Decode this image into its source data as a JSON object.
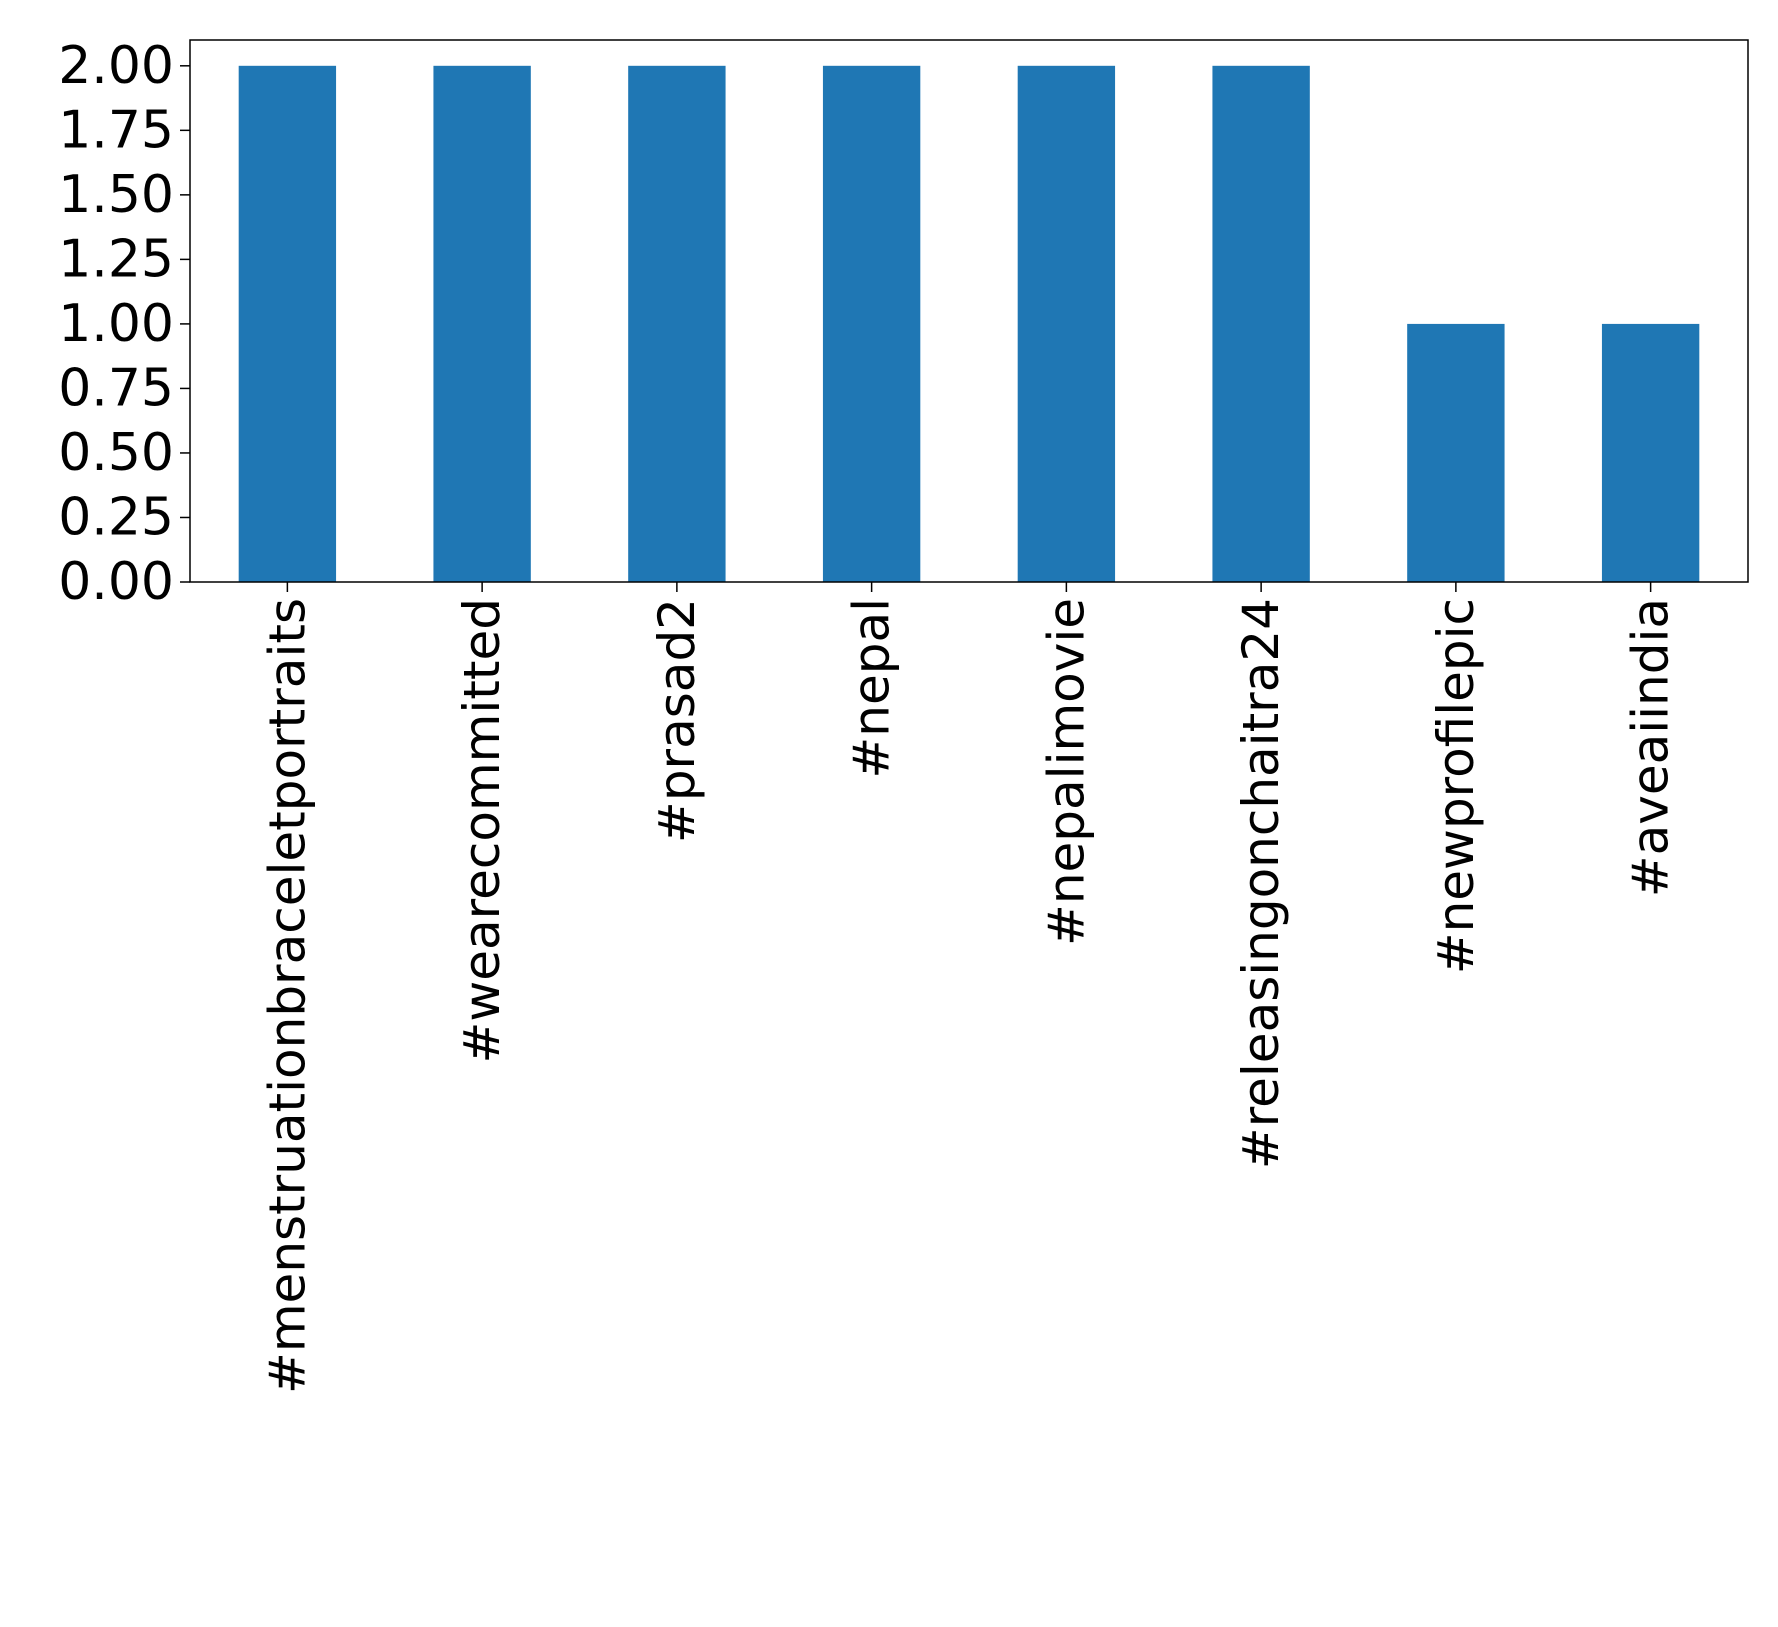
{
  "chart_data": {
    "type": "bar",
    "title": "",
    "xlabel": "",
    "ylabel": "",
    "categories": [
      "#menstruationbraceletportraits",
      "#wearecommitted",
      "#prasad2",
      "#nepal",
      "#nepalimovie",
      "#releasingonchaitra24",
      "#newprofilepic",
      "#aveaiindia"
    ],
    "values": [
      2,
      2,
      2,
      2,
      2,
      2,
      1,
      1
    ],
    "ylim": [
      0,
      2.1
    ],
    "yticks": [
      0,
      0.25,
      0.5,
      0.75,
      1.0,
      1.25,
      1.5,
      1.75,
      2.0
    ],
    "ytick_labels": [
      "0.00",
      "0.25",
      "0.50",
      "0.75",
      "1.00",
      "1.25",
      "1.50",
      "1.75",
      "2.00"
    ],
    "grid": false,
    "legend": "none",
    "bar_color": "#1f77b4"
  }
}
